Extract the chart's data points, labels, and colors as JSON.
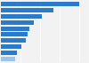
{
  "values": [
    100,
    67,
    52,
    42,
    37,
    34,
    32,
    26,
    21,
    18
  ],
  "bar_color": "#2b7bca",
  "last_bar_color": "#9fc4e8",
  "background_color": "#f2f2f2",
  "xlim": [
    0,
    112
  ],
  "bar_height": 0.72
}
